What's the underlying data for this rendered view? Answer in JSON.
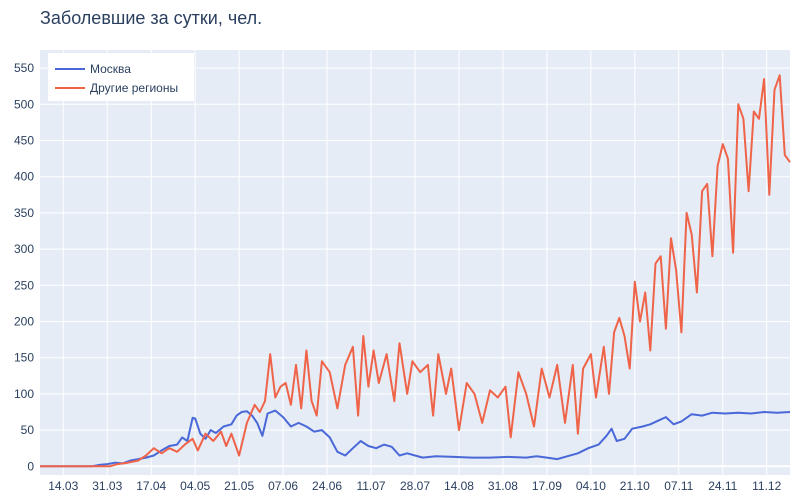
{
  "chart_data": {
    "type": "line",
    "title": "Заболевшие за сутки, чел.",
    "xlabel": "",
    "ylabel": "",
    "x_start": "2020-03-05",
    "x_end": "2020-12-20",
    "ylim": [
      -12,
      575
    ],
    "yticks": [
      0,
      50,
      100,
      150,
      200,
      250,
      300,
      350,
      400,
      450,
      500,
      550
    ],
    "xticks": [
      {
        "date": "2020-03-14",
        "label": "14.03"
      },
      {
        "date": "2020-03-31",
        "label": "31.03"
      },
      {
        "date": "2020-04-17",
        "label": "17.04"
      },
      {
        "date": "2020-05-04",
        "label": "04.05"
      },
      {
        "date": "2020-05-21",
        "label": "21.05"
      },
      {
        "date": "2020-06-07",
        "label": "07.06"
      },
      {
        "date": "2020-06-24",
        "label": "24.06"
      },
      {
        "date": "2020-07-11",
        "label": "11.07"
      },
      {
        "date": "2020-07-28",
        "label": "28.07"
      },
      {
        "date": "2020-08-14",
        "label": "14.08"
      },
      {
        "date": "2020-08-31",
        "label": "31.08"
      },
      {
        "date": "2020-09-17",
        "label": "17.09"
      },
      {
        "date": "2020-10-04",
        "label": "04.10"
      },
      {
        "date": "2020-10-21",
        "label": "21.10"
      },
      {
        "date": "2020-11-07",
        "label": "07.11"
      },
      {
        "date": "2020-11-24",
        "label": "24.11"
      },
      {
        "date": "2020-12-11",
        "label": "11.12"
      }
    ],
    "grid": true,
    "legend_position": "top-left",
    "series": [
      {
        "name": "Москва",
        "color": "#4a68d8",
        "points": [
          [
            "2020-03-05",
            0
          ],
          [
            "2020-03-25",
            0
          ],
          [
            "2020-03-28",
            2
          ],
          [
            "2020-03-31",
            3
          ],
          [
            "2020-04-03",
            5
          ],
          [
            "2020-04-06",
            4
          ],
          [
            "2020-04-09",
            8
          ],
          [
            "2020-04-12",
            10
          ],
          [
            "2020-04-15",
            12
          ],
          [
            "2020-04-18",
            15
          ],
          [
            "2020-04-21",
            22
          ],
          [
            "2020-04-24",
            28
          ],
          [
            "2020-04-27",
            30
          ],
          [
            "2020-04-29",
            40
          ],
          [
            "2020-05-01",
            35
          ],
          [
            "2020-05-03",
            67
          ],
          [
            "2020-05-04",
            66
          ],
          [
            "2020-05-06",
            45
          ],
          [
            "2020-05-08",
            38
          ],
          [
            "2020-05-10",
            50
          ],
          [
            "2020-05-12",
            46
          ],
          [
            "2020-05-15",
            55
          ],
          [
            "2020-05-18",
            58
          ],
          [
            "2020-05-20",
            70
          ],
          [
            "2020-05-22",
            75
          ],
          [
            "2020-05-24",
            76
          ],
          [
            "2020-05-26",
            70
          ],
          [
            "2020-05-28",
            60
          ],
          [
            "2020-05-30",
            42
          ],
          [
            "2020-06-01",
            73
          ],
          [
            "2020-06-04",
            77
          ],
          [
            "2020-06-07",
            68
          ],
          [
            "2020-06-10",
            55
          ],
          [
            "2020-06-13",
            60
          ],
          [
            "2020-06-16",
            55
          ],
          [
            "2020-06-19",
            48
          ],
          [
            "2020-06-22",
            50
          ],
          [
            "2020-06-25",
            40
          ],
          [
            "2020-06-28",
            20
          ],
          [
            "2020-07-01",
            15
          ],
          [
            "2020-07-04",
            25
          ],
          [
            "2020-07-07",
            35
          ],
          [
            "2020-07-10",
            28
          ],
          [
            "2020-07-13",
            25
          ],
          [
            "2020-07-16",
            30
          ],
          [
            "2020-07-19",
            27
          ],
          [
            "2020-07-22",
            15
          ],
          [
            "2020-07-25",
            18
          ],
          [
            "2020-07-28",
            15
          ],
          [
            "2020-07-31",
            12
          ],
          [
            "2020-08-05",
            14
          ],
          [
            "2020-08-12",
            13
          ],
          [
            "2020-08-19",
            12
          ],
          [
            "2020-08-26",
            12
          ],
          [
            "2020-09-02",
            13
          ],
          [
            "2020-09-09",
            12
          ],
          [
            "2020-09-13",
            14
          ],
          [
            "2020-09-17",
            12
          ],
          [
            "2020-09-21",
            10
          ],
          [
            "2020-09-25",
            14
          ],
          [
            "2020-09-29",
            18
          ],
          [
            "2020-10-03",
            25
          ],
          [
            "2020-10-07",
            30
          ],
          [
            "2020-10-10",
            42
          ],
          [
            "2020-10-12",
            52
          ],
          [
            "2020-10-14",
            35
          ],
          [
            "2020-10-17",
            38
          ],
          [
            "2020-10-20",
            52
          ],
          [
            "2020-10-24",
            55
          ],
          [
            "2020-10-27",
            58
          ],
          [
            "2020-10-30",
            63
          ],
          [
            "2020-11-02",
            68
          ],
          [
            "2020-11-05",
            58
          ],
          [
            "2020-11-08",
            62
          ],
          [
            "2020-11-12",
            72
          ],
          [
            "2020-11-16",
            70
          ],
          [
            "2020-11-20",
            74
          ],
          [
            "2020-11-25",
            73
          ],
          [
            "2020-11-30",
            74
          ],
          [
            "2020-12-05",
            73
          ],
          [
            "2020-12-10",
            75
          ],
          [
            "2020-12-15",
            74
          ],
          [
            "2020-12-20",
            75
          ]
        ]
      },
      {
        "name": "Другие регионы",
        "color": "#ef6449",
        "points": [
          [
            "2020-03-05",
            0
          ],
          [
            "2020-04-01",
            0
          ],
          [
            "2020-04-04",
            3
          ],
          [
            "2020-04-08",
            5
          ],
          [
            "2020-04-12",
            8
          ],
          [
            "2020-04-15",
            15
          ],
          [
            "2020-04-18",
            25
          ],
          [
            "2020-04-21",
            18
          ],
          [
            "2020-04-24",
            25
          ],
          [
            "2020-04-27",
            20
          ],
          [
            "2020-04-30",
            30
          ],
          [
            "2020-05-03",
            38
          ],
          [
            "2020-05-05",
            22
          ],
          [
            "2020-05-08",
            45
          ],
          [
            "2020-05-11",
            35
          ],
          [
            "2020-05-14",
            48
          ],
          [
            "2020-05-16",
            28
          ],
          [
            "2020-05-18",
            45
          ],
          [
            "2020-05-21",
            15
          ],
          [
            "2020-05-24",
            60
          ],
          [
            "2020-05-27",
            85
          ],
          [
            "2020-05-29",
            75
          ],
          [
            "2020-05-31",
            90
          ],
          [
            "2020-06-02",
            155
          ],
          [
            "2020-06-04",
            95
          ],
          [
            "2020-06-06",
            110
          ],
          [
            "2020-06-08",
            115
          ],
          [
            "2020-06-10",
            85
          ],
          [
            "2020-06-12",
            140
          ],
          [
            "2020-06-14",
            80
          ],
          [
            "2020-06-16",
            160
          ],
          [
            "2020-06-18",
            90
          ],
          [
            "2020-06-20",
            70
          ],
          [
            "2020-06-22",
            145
          ],
          [
            "2020-06-25",
            130
          ],
          [
            "2020-06-28",
            80
          ],
          [
            "2020-07-01",
            140
          ],
          [
            "2020-07-04",
            165
          ],
          [
            "2020-07-06",
            70
          ],
          [
            "2020-07-08",
            180
          ],
          [
            "2020-07-10",
            110
          ],
          [
            "2020-07-12",
            160
          ],
          [
            "2020-07-14",
            115
          ],
          [
            "2020-07-17",
            155
          ],
          [
            "2020-07-20",
            90
          ],
          [
            "2020-07-22",
            170
          ],
          [
            "2020-07-25",
            100
          ],
          [
            "2020-07-27",
            145
          ],
          [
            "2020-07-30",
            130
          ],
          [
            "2020-08-02",
            140
          ],
          [
            "2020-08-04",
            70
          ],
          [
            "2020-08-06",
            155
          ],
          [
            "2020-08-09",
            100
          ],
          [
            "2020-08-11",
            135
          ],
          [
            "2020-08-14",
            50
          ],
          [
            "2020-08-17",
            115
          ],
          [
            "2020-08-20",
            100
          ],
          [
            "2020-08-23",
            60
          ],
          [
            "2020-08-26",
            105
          ],
          [
            "2020-08-29",
            95
          ],
          [
            "2020-09-01",
            110
          ],
          [
            "2020-09-03",
            40
          ],
          [
            "2020-09-06",
            130
          ],
          [
            "2020-09-09",
            100
          ],
          [
            "2020-09-12",
            55
          ],
          [
            "2020-09-15",
            135
          ],
          [
            "2020-09-18",
            95
          ],
          [
            "2020-09-21",
            140
          ],
          [
            "2020-09-24",
            60
          ],
          [
            "2020-09-27",
            140
          ],
          [
            "2020-09-29",
            45
          ],
          [
            "2020-10-01",
            135
          ],
          [
            "2020-10-04",
            155
          ],
          [
            "2020-10-06",
            95
          ],
          [
            "2020-10-09",
            165
          ],
          [
            "2020-10-11",
            100
          ],
          [
            "2020-10-13",
            185
          ],
          [
            "2020-10-15",
            205
          ],
          [
            "2020-10-17",
            180
          ],
          [
            "2020-10-19",
            135
          ],
          [
            "2020-10-21",
            255
          ],
          [
            "2020-10-23",
            200
          ],
          [
            "2020-10-25",
            240
          ],
          [
            "2020-10-27",
            160
          ],
          [
            "2020-10-29",
            280
          ],
          [
            "2020-10-31",
            290
          ],
          [
            "2020-11-02",
            190
          ],
          [
            "2020-11-04",
            315
          ],
          [
            "2020-11-06",
            270
          ],
          [
            "2020-11-08",
            185
          ],
          [
            "2020-11-10",
            350
          ],
          [
            "2020-11-12",
            320
          ],
          [
            "2020-11-14",
            240
          ],
          [
            "2020-11-16",
            380
          ],
          [
            "2020-11-18",
            390
          ],
          [
            "2020-11-20",
            290
          ],
          [
            "2020-11-22",
            415
          ],
          [
            "2020-11-24",
            445
          ],
          [
            "2020-11-26",
            425
          ],
          [
            "2020-11-28",
            295
          ],
          [
            "2020-11-30",
            500
          ],
          [
            "2020-12-02",
            480
          ],
          [
            "2020-12-04",
            380
          ],
          [
            "2020-12-06",
            490
          ],
          [
            "2020-12-08",
            480
          ],
          [
            "2020-12-10",
            535
          ],
          [
            "2020-12-12",
            375
          ],
          [
            "2020-12-14",
            520
          ],
          [
            "2020-12-16",
            540
          ],
          [
            "2020-12-18",
            430
          ],
          [
            "2020-12-20",
            420
          ]
        ]
      }
    ]
  }
}
